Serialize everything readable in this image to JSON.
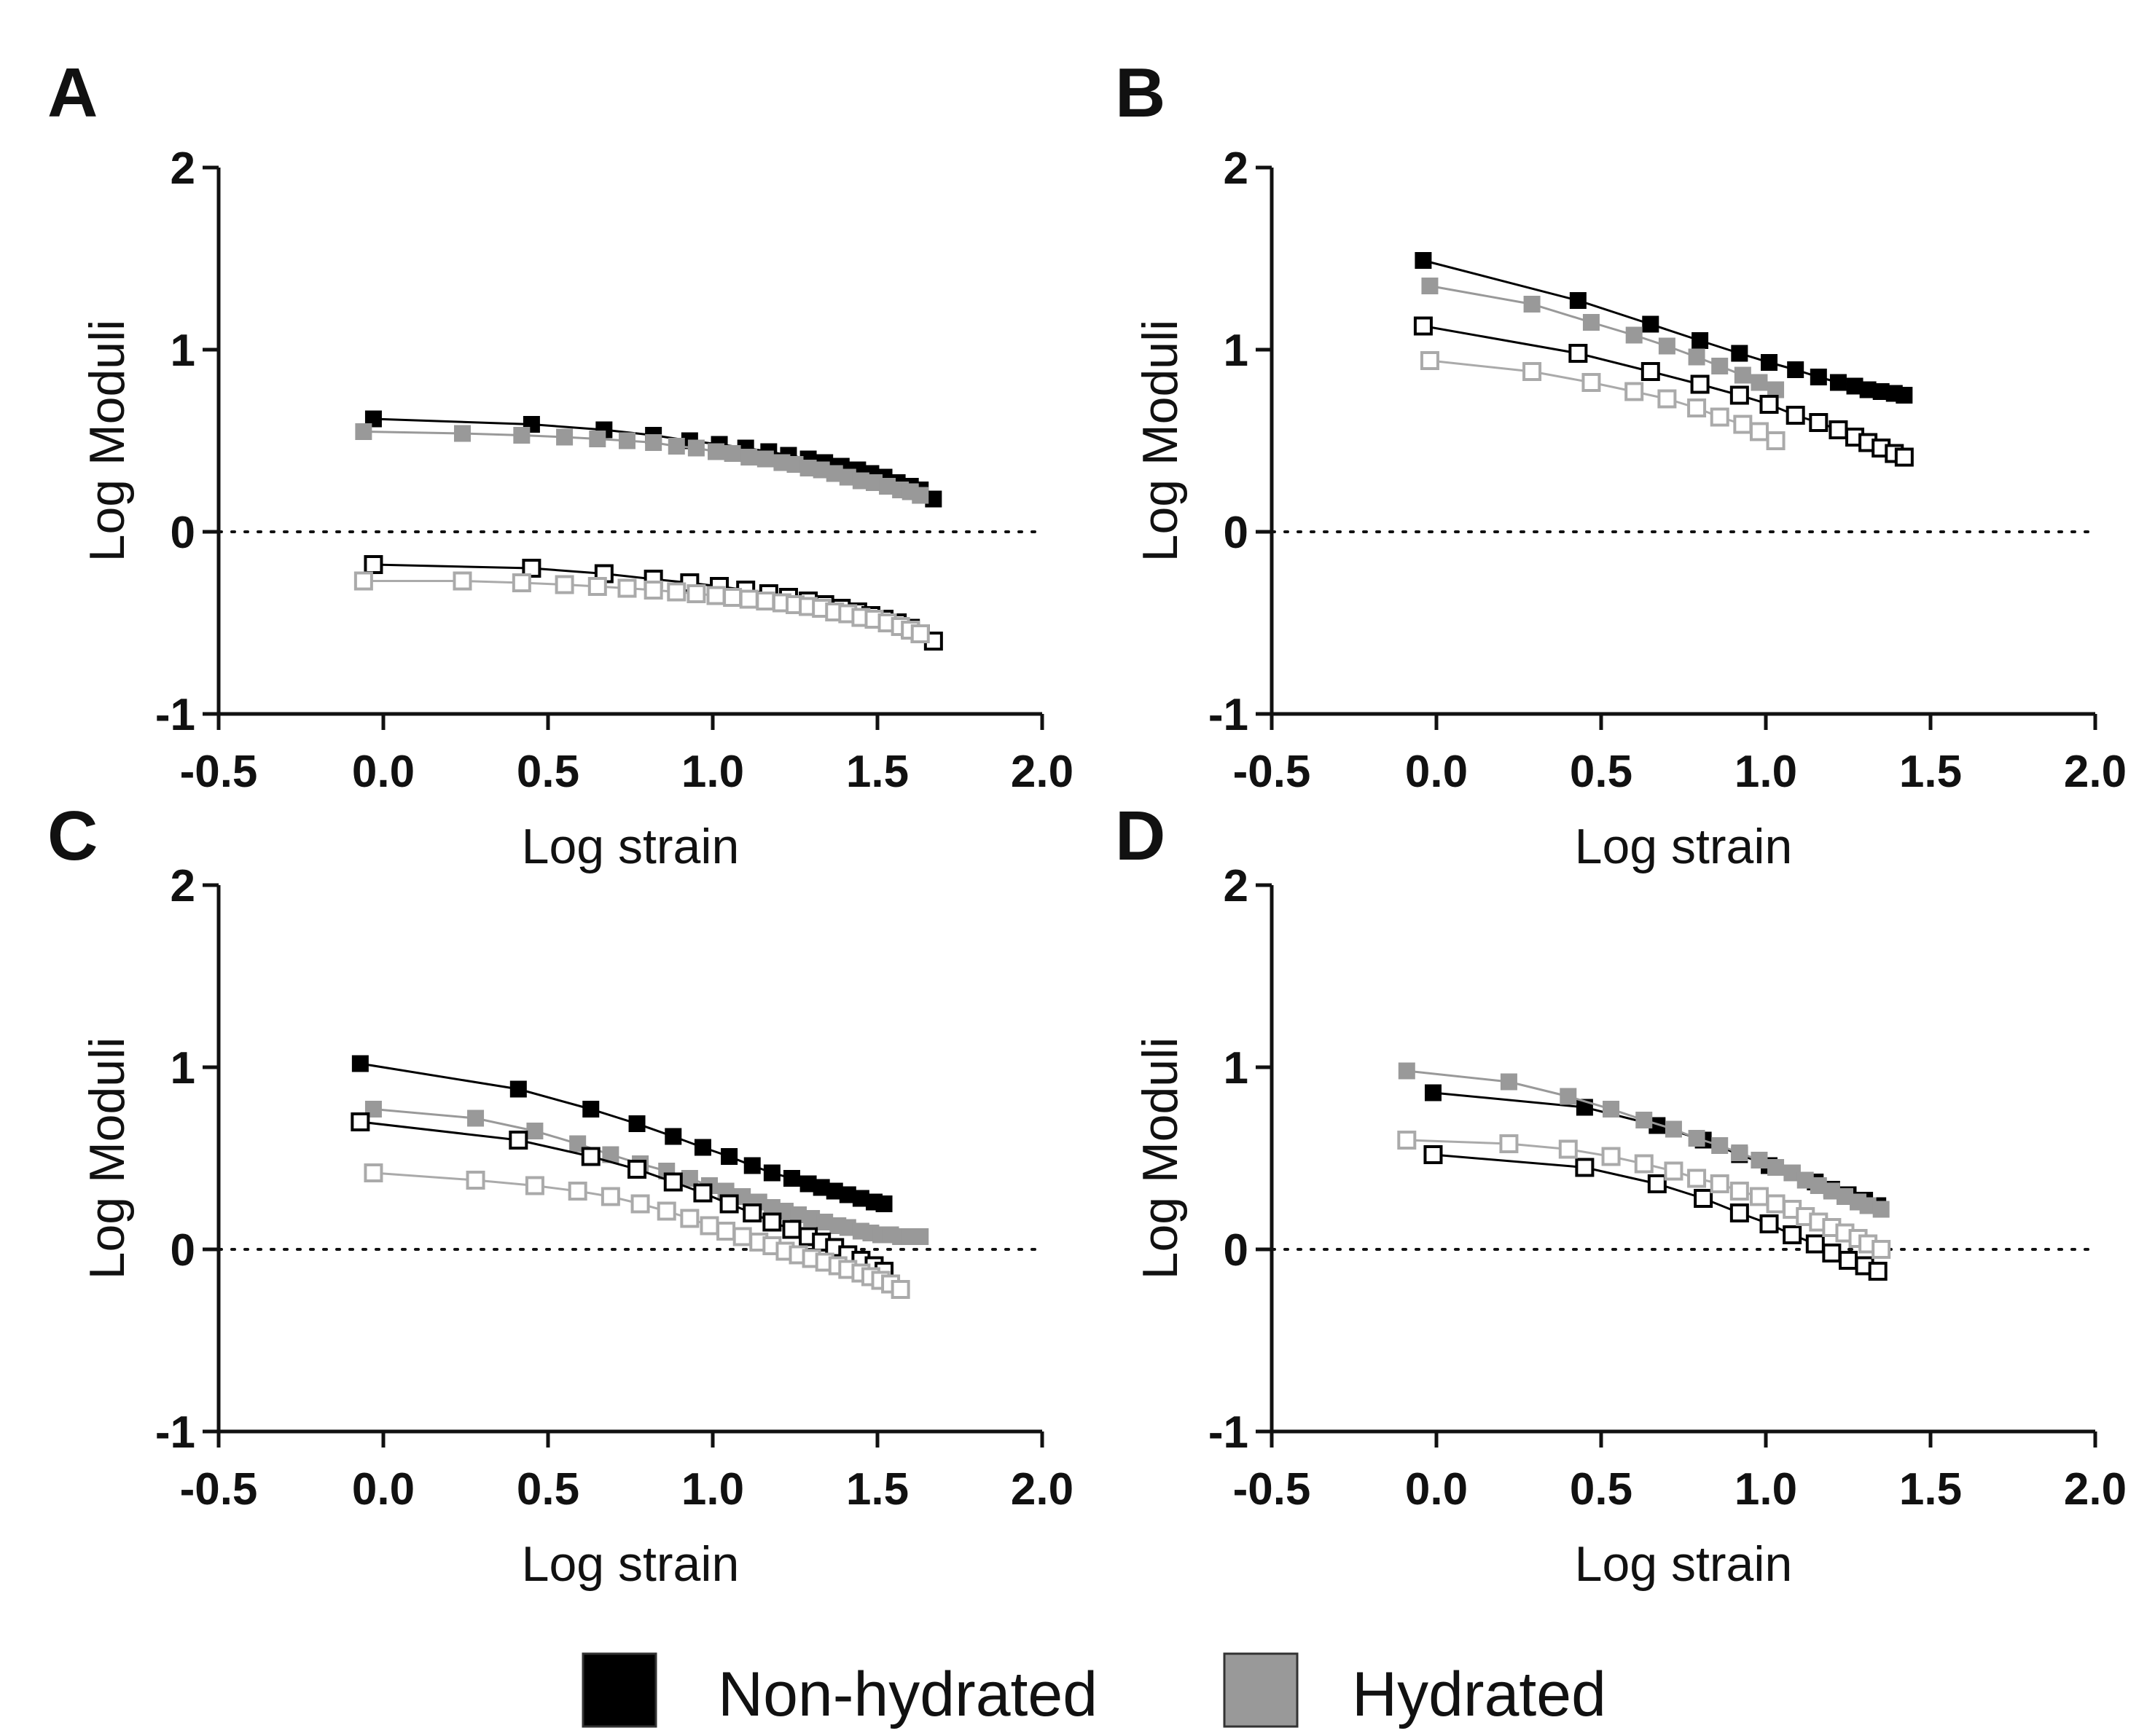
{
  "colors": {
    "nonhydrated": "#000000",
    "hydrated": "#999999",
    "hydrated_open": "#aaaaaa"
  },
  "legend": [
    {
      "label": "Non-hydrated",
      "color": "#000000"
    },
    {
      "label": "Hydrated",
      "color": "#999999"
    }
  ],
  "chart_data": [
    {
      "panel": "A",
      "type": "line",
      "xlabel": "Log strain",
      "ylabel": "Log Moduli",
      "xlim": [
        -0.5,
        2.0
      ],
      "ylim": [
        -1,
        2
      ],
      "xticks": [
        "-0.5",
        "0.0",
        "0.5",
        "1.0",
        "1.5",
        "2.0"
      ],
      "yticks": [
        "-1",
        "0",
        "1",
        "2"
      ],
      "reference_line_y": 0,
      "grid": false,
      "series": [
        {
          "color": "nonhydrated",
          "filled": true,
          "x": [
            -0.03,
            0.45,
            0.67,
            0.82,
            0.93,
            1.02,
            1.1,
            1.17,
            1.23,
            1.29,
            1.34,
            1.39,
            1.44,
            1.48,
            1.52,
            1.56,
            1.6,
            1.63,
            1.67
          ],
          "y": [
            0.62,
            0.59,
            0.56,
            0.53,
            0.5,
            0.48,
            0.46,
            0.44,
            0.42,
            0.4,
            0.38,
            0.36,
            0.34,
            0.32,
            0.3,
            0.27,
            0.25,
            0.23,
            0.18
          ]
        },
        {
          "color": "hydrated",
          "filled": true,
          "x": [
            -0.06,
            0.24,
            0.42,
            0.55,
            0.65,
            0.74,
            0.82,
            0.89,
            0.95,
            1.01,
            1.06,
            1.11,
            1.16,
            1.21,
            1.25,
            1.29,
            1.33,
            1.37,
            1.41,
            1.45,
            1.49,
            1.53,
            1.57,
            1.6,
            1.63
          ],
          "y": [
            0.55,
            0.54,
            0.53,
            0.52,
            0.51,
            0.5,
            0.49,
            0.47,
            0.46,
            0.44,
            0.43,
            0.41,
            0.4,
            0.38,
            0.37,
            0.35,
            0.34,
            0.32,
            0.3,
            0.28,
            0.27,
            0.25,
            0.23,
            0.22,
            0.2
          ]
        },
        {
          "color": "nonhydrated",
          "filled": false,
          "x": [
            -0.03,
            0.45,
            0.67,
            0.82,
            0.93,
            1.02,
            1.1,
            1.17,
            1.23,
            1.29,
            1.34,
            1.39,
            1.44,
            1.48,
            1.52,
            1.56,
            1.6,
            1.63,
            1.67
          ],
          "y": [
            -0.18,
            -0.2,
            -0.23,
            -0.26,
            -0.28,
            -0.3,
            -0.32,
            -0.34,
            -0.36,
            -0.38,
            -0.4,
            -0.42,
            -0.44,
            -0.46,
            -0.48,
            -0.5,
            -0.53,
            -0.56,
            -0.6
          ]
        },
        {
          "color": "hydrated",
          "filled": false,
          "x": [
            -0.06,
            0.24,
            0.42,
            0.55,
            0.65,
            0.74,
            0.82,
            0.89,
            0.95,
            1.01,
            1.06,
            1.11,
            1.16,
            1.21,
            1.25,
            1.29,
            1.33,
            1.37,
            1.41,
            1.45,
            1.49,
            1.53,
            1.57,
            1.6,
            1.63
          ],
          "y": [
            -0.27,
            -0.27,
            -0.28,
            -0.29,
            -0.3,
            -0.31,
            -0.32,
            -0.33,
            -0.34,
            -0.35,
            -0.36,
            -0.37,
            -0.38,
            -0.39,
            -0.4,
            -0.41,
            -0.42,
            -0.44,
            -0.45,
            -0.47,
            -0.48,
            -0.5,
            -0.52,
            -0.54,
            -0.56
          ]
        }
      ]
    },
    {
      "panel": "B",
      "type": "line",
      "xlabel": "Log strain",
      "ylabel": "Log Moduli",
      "xlim": [
        -0.5,
        2.0
      ],
      "ylim": [
        -1,
        2
      ],
      "xticks": [
        "-0.5",
        "0.0",
        "0.5",
        "1.0",
        "1.5",
        "2.0"
      ],
      "yticks": [
        "-1",
        "0",
        "1",
        "2"
      ],
      "reference_line_y": 0,
      "grid": false,
      "series": [
        {
          "color": "nonhydrated",
          "filled": true,
          "x": [
            -0.04,
            0.43,
            0.65,
            0.8,
            0.92,
            1.01,
            1.09,
            1.16,
            1.22,
            1.27,
            1.31,
            1.35,
            1.39,
            1.42
          ],
          "y": [
            1.49,
            1.27,
            1.14,
            1.05,
            0.98,
            0.93,
            0.89,
            0.85,
            0.82,
            0.8,
            0.78,
            0.77,
            0.76,
            0.75
          ]
        },
        {
          "color": "hydrated",
          "filled": true,
          "x": [
            -0.02,
            0.29,
            0.47,
            0.6,
            0.7,
            0.79,
            0.86,
            0.93,
            0.98,
            1.03
          ],
          "y": [
            1.35,
            1.25,
            1.15,
            1.08,
            1.02,
            0.96,
            0.91,
            0.86,
            0.82,
            0.78
          ]
        },
        {
          "color": "nonhydrated",
          "filled": false,
          "x": [
            -0.04,
            0.43,
            0.65,
            0.8,
            0.92,
            1.01,
            1.09,
            1.16,
            1.22,
            1.27,
            1.31,
            1.35,
            1.39,
            1.42
          ],
          "y": [
            1.13,
            0.98,
            0.88,
            0.81,
            0.75,
            0.7,
            0.64,
            0.6,
            0.56,
            0.52,
            0.49,
            0.46,
            0.43,
            0.41
          ]
        },
        {
          "color": "hydrated",
          "filled": false,
          "x": [
            -0.02,
            0.29,
            0.47,
            0.6,
            0.7,
            0.79,
            0.86,
            0.93,
            0.98,
            1.03
          ],
          "y": [
            0.94,
            0.88,
            0.82,
            0.77,
            0.73,
            0.68,
            0.63,
            0.59,
            0.55,
            0.5
          ]
        }
      ]
    },
    {
      "panel": "C",
      "type": "line",
      "xlabel": "Log strain",
      "ylabel": "Log Moduli",
      "xlim": [
        -0.5,
        2.0
      ],
      "ylim": [
        -1,
        2
      ],
      "xticks": [
        "-0.5",
        "0.0",
        "0.5",
        "1.0",
        "1.5",
        "2.0"
      ],
      "yticks": [
        "-1",
        "0",
        "1",
        "2"
      ],
      "reference_line_y": 0,
      "grid": false,
      "series": [
        {
          "color": "nonhydrated",
          "filled": true,
          "x": [
            -0.07,
            0.41,
            0.63,
            0.77,
            0.88,
            0.97,
            1.05,
            1.12,
            1.18,
            1.24,
            1.29,
            1.33,
            1.37,
            1.41,
            1.45,
            1.49,
            1.52
          ],
          "y": [
            1.02,
            0.88,
            0.77,
            0.69,
            0.62,
            0.56,
            0.51,
            0.46,
            0.42,
            0.39,
            0.36,
            0.34,
            0.32,
            0.3,
            0.28,
            0.26,
            0.25
          ]
        },
        {
          "color": "hydrated",
          "filled": true,
          "x": [
            -0.03,
            0.28,
            0.46,
            0.59,
            0.69,
            0.78,
            0.86,
            0.93,
            0.99,
            1.04,
            1.09,
            1.14,
            1.18,
            1.22,
            1.26,
            1.3,
            1.34,
            1.38,
            1.41,
            1.45,
            1.48,
            1.51,
            1.54,
            1.57,
            1.6,
            1.63
          ],
          "y": [
            0.77,
            0.72,
            0.65,
            0.58,
            0.52,
            0.47,
            0.43,
            0.39,
            0.35,
            0.32,
            0.29,
            0.26,
            0.23,
            0.21,
            0.19,
            0.17,
            0.15,
            0.13,
            0.12,
            0.1,
            0.09,
            0.08,
            0.08,
            0.07,
            0.07,
            0.07
          ]
        },
        {
          "color": "nonhydrated",
          "filled": false,
          "x": [
            -0.07,
            0.41,
            0.63,
            0.77,
            0.88,
            0.97,
            1.05,
            1.12,
            1.18,
            1.24,
            1.29,
            1.33,
            1.37,
            1.41,
            1.45,
            1.49,
            1.52
          ],
          "y": [
            0.7,
            0.6,
            0.51,
            0.44,
            0.37,
            0.31,
            0.25,
            0.2,
            0.15,
            0.11,
            0.07,
            0.04,
            0.01,
            -0.03,
            -0.06,
            -0.09,
            -0.12
          ]
        },
        {
          "color": "hydrated",
          "filled": false,
          "x": [
            -0.03,
            0.28,
            0.46,
            0.59,
            0.69,
            0.78,
            0.86,
            0.93,
            0.99,
            1.04,
            1.09,
            1.14,
            1.18,
            1.22,
            1.26,
            1.3,
            1.34,
            1.38,
            1.41,
            1.45,
            1.48,
            1.51,
            1.54,
            1.57
          ],
          "y": [
            0.42,
            0.38,
            0.35,
            0.32,
            0.29,
            0.25,
            0.21,
            0.17,
            0.13,
            0.1,
            0.07,
            0.04,
            0.02,
            -0.01,
            -0.03,
            -0.05,
            -0.07,
            -0.09,
            -0.11,
            -0.13,
            -0.15,
            -0.17,
            -0.19,
            -0.22
          ]
        }
      ]
    },
    {
      "panel": "D",
      "type": "line",
      "xlabel": "Log strain",
      "ylabel": "Log Moduli",
      "xlim": [
        -0.5,
        2.0
      ],
      "ylim": [
        -1,
        2
      ],
      "xticks": [
        "-0.5",
        "0.0",
        "0.5",
        "1.0",
        "1.5",
        "2.0"
      ],
      "yticks": [
        "-1",
        "0",
        "1",
        "2"
      ],
      "reference_line_y": 0,
      "grid": false,
      "series": [
        {
          "color": "nonhydrated",
          "filled": true,
          "x": [
            -0.01,
            0.45,
            0.67,
            0.81,
            0.92,
            1.01,
            1.08,
            1.15,
            1.2,
            1.25,
            1.3,
            1.34
          ],
          "y": [
            0.86,
            0.78,
            0.68,
            0.6,
            0.52,
            0.46,
            0.42,
            0.37,
            0.33,
            0.3,
            0.27,
            0.24
          ]
        },
        {
          "color": "hydrated",
          "filled": true,
          "x": [
            -0.09,
            0.22,
            0.4,
            0.53,
            0.63,
            0.72,
            0.79,
            0.86,
            0.92,
            0.98,
            1.03,
            1.08,
            1.12,
            1.16,
            1.2,
            1.24,
            1.28,
            1.31,
            1.35
          ],
          "y": [
            0.98,
            0.92,
            0.84,
            0.77,
            0.71,
            0.66,
            0.61,
            0.57,
            0.53,
            0.49,
            0.45,
            0.42,
            0.38,
            0.35,
            0.32,
            0.29,
            0.26,
            0.24,
            0.22
          ]
        },
        {
          "color": "nonhydrated",
          "filled": false,
          "x": [
            -0.01,
            0.45,
            0.67,
            0.81,
            0.92,
            1.01,
            1.08,
            1.15,
            1.2,
            1.25,
            1.3,
            1.34
          ],
          "y": [
            0.52,
            0.45,
            0.36,
            0.28,
            0.2,
            0.14,
            0.08,
            0.03,
            -0.02,
            -0.06,
            -0.09,
            -0.12
          ]
        },
        {
          "color": "hydrated",
          "filled": false,
          "x": [
            -0.09,
            0.22,
            0.4,
            0.53,
            0.63,
            0.72,
            0.79,
            0.86,
            0.92,
            0.98,
            1.03,
            1.08,
            1.12,
            1.16,
            1.2,
            1.24,
            1.28,
            1.31,
            1.35
          ],
          "y": [
            0.6,
            0.58,
            0.55,
            0.51,
            0.47,
            0.43,
            0.39,
            0.36,
            0.32,
            0.29,
            0.25,
            0.22,
            0.18,
            0.15,
            0.12,
            0.09,
            0.06,
            0.03,
            0.0
          ]
        }
      ]
    }
  ]
}
